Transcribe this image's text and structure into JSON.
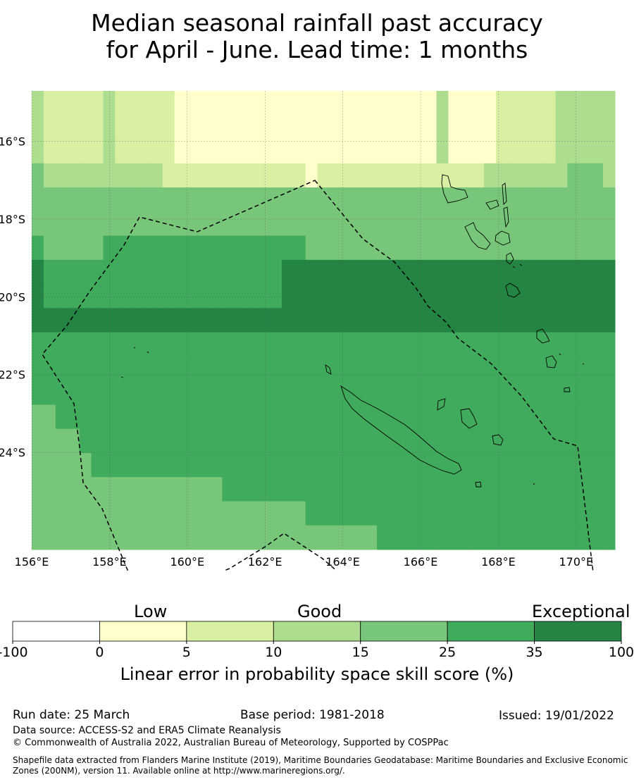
{
  "title": {
    "line1": "Median seasonal rainfall past accuracy",
    "line2": "for April - June. Lead time: 1 months"
  },
  "map": {
    "x_ticks": [
      "156°E",
      "158°E",
      "160°E",
      "162°E",
      "164°E",
      "166°E",
      "168°E",
      "170°E"
    ],
    "y_ticks": [
      "16°S",
      "18°S",
      "20°S",
      "22°S",
      "24°S"
    ],
    "lon_range": [
      156,
      171
    ],
    "lat_range": [
      -26.5,
      -14.7
    ],
    "grid_step_deg": 0.833,
    "shading_levels": [
      "3222223222221111111111111111111111311112222233333",
      "3222223222221111111111111111111111311112222233333",
      "3222223222221111111111111111111111311112222233333",
      "4333333333322222222222212222222222222233333334443",
      "4444444444444444444444444444444444444444444444444",
      "4444444444444444444444444444444444444444444444444",
      "5444445555555555555555544444444444444444444444444",
      "6555555555555555555556666666666666666666666666666",
      "6555555555555555555556666666666666666666666666666",
      "6666666666666666666666666666666666666666666666666",
      "5555555555555555555555555555555555555555555555555",
      "5555555555555555555555555555555555555555555555555",
      "5555555555555555555555555555555555555555555555555",
      "4455555555555555555555555555555555555555555555555",
      "4444555555555555555555555555555555555555555555555",
      "4444455555555555555555555555555555555555555555555",
      "4444444444444444555555555555555555555555555555555",
      "4444444444444444444444455555555555555555555555555",
      "4444444444444444444444444444455555555555555555555"
    ],
    "categories": [
      "Low",
      "Good",
      "Exceptional"
    ],
    "colorbar_ticks": [
      "-100",
      "0",
      "5",
      "10",
      "15",
      "25",
      "35",
      "100"
    ],
    "colorbar_colors": [
      "#ffffff",
      "#ffffcc",
      "#d9f0a3",
      "#addd8e",
      "#78c679",
      "#41ab5d",
      "#238443"
    ],
    "colorbar_label": "Linear error in probability space skill score (%)"
  },
  "footer": {
    "run_date": "Run date: 25 March",
    "base_period": "Base period: 1981-2018",
    "issued": "Issued: 19/01/2022",
    "data_source": "Data source: ACCESS-S2 and ERA5 Climate Reanalysis",
    "copyright": "© Commonwealth of Australia 2022, Australian Bureau of Meteorology, Supported by COSPPac",
    "shapefile_line1": "Shapefile data extracted from Flanders Marine Institute (2019), Maritime Boundaries Geodatabase: Maritime Boundaries and Exclusive Economic",
    "shapefile_line2": "Zones (200NM), version 11. Available online at http://www.marineregions.org/."
  }
}
